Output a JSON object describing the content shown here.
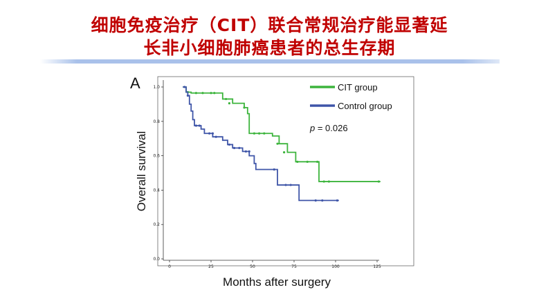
{
  "slide": {
    "title_line1": "细胞免疫治疗（CIT）联合常规治疗能显著延",
    "title_line2": "长非小细胞肺癌患者的总生存期",
    "accent_color": "#c00000",
    "bar_color": "#a9c1ea"
  },
  "chart_data": {
    "type": "line",
    "panel_label": "A",
    "title": "",
    "xlabel": "Months after surgery",
    "ylabel": "Overall survival",
    "xlim": [
      0,
      130
    ],
    "ylim": [
      0,
      1.0
    ],
    "x_ticks": [
      0,
      25,
      50,
      75,
      100,
      125
    ],
    "y_ticks": [
      "0.0",
      "0.2",
      "0.4",
      "0.6",
      "0.8",
      "1.0"
    ],
    "annotation": "p = 0.026",
    "legend_position": "top-right",
    "series": [
      {
        "name": "CIT group",
        "color": "#3cb43c",
        "steps": [
          [
            8,
            1.0
          ],
          [
            10,
            0.97
          ],
          [
            13,
            0.965
          ],
          [
            32,
            0.93
          ],
          [
            38,
            0.905
          ],
          [
            45,
            0.88
          ],
          [
            47,
            0.845
          ],
          [
            48,
            0.73
          ],
          [
            62,
            0.715
          ],
          [
            66,
            0.67
          ],
          [
            71,
            0.62
          ],
          [
            76,
            0.565
          ],
          [
            90,
            0.45
          ],
          [
            127,
            0.45
          ]
        ],
        "censored": [
          [
            11,
            0.97
          ],
          [
            16,
            0.965
          ],
          [
            20,
            0.965
          ],
          [
            25,
            0.965
          ],
          [
            27,
            0.965
          ],
          [
            34,
            0.93
          ],
          [
            36,
            0.905
          ],
          [
            45,
            0.88
          ],
          [
            51,
            0.73
          ],
          [
            54,
            0.73
          ],
          [
            57,
            0.73
          ],
          [
            65,
            0.67
          ],
          [
            69,
            0.62
          ],
          [
            77,
            0.565
          ],
          [
            83,
            0.565
          ],
          [
            89,
            0.565
          ],
          [
            93,
            0.45
          ],
          [
            96,
            0.45
          ],
          [
            126,
            0.45
          ]
        ]
      },
      {
        "name": "Control group",
        "color": "#3f55a8",
        "steps": [
          [
            8,
            1.0
          ],
          [
            10,
            0.97
          ],
          [
            11,
            0.95
          ],
          [
            12,
            0.9
          ],
          [
            13,
            0.86
          ],
          [
            14,
            0.81
          ],
          [
            15,
            0.775
          ],
          [
            19,
            0.755
          ],
          [
            21,
            0.73
          ],
          [
            26,
            0.71
          ],
          [
            32,
            0.69
          ],
          [
            35,
            0.665
          ],
          [
            38,
            0.645
          ],
          [
            44,
            0.625
          ],
          [
            48,
            0.6
          ],
          [
            51,
            0.555
          ],
          [
            52,
            0.52
          ],
          [
            65,
            0.43
          ],
          [
            78,
            0.34
          ],
          [
            102,
            0.34
          ]
        ],
        "censored": [
          [
            9,
            1.0
          ],
          [
            11,
            0.95
          ],
          [
            16,
            0.775
          ],
          [
            18,
            0.775
          ],
          [
            24,
            0.73
          ],
          [
            26,
            0.73
          ],
          [
            28,
            0.71
          ],
          [
            36,
            0.665
          ],
          [
            39,
            0.645
          ],
          [
            42,
            0.645
          ],
          [
            46,
            0.625
          ],
          [
            48,
            0.625
          ],
          [
            63,
            0.52
          ],
          [
            70,
            0.43
          ],
          [
            73,
            0.43
          ],
          [
            88,
            0.34
          ],
          [
            92,
            0.34
          ],
          [
            101,
            0.34
          ]
        ]
      }
    ]
  }
}
